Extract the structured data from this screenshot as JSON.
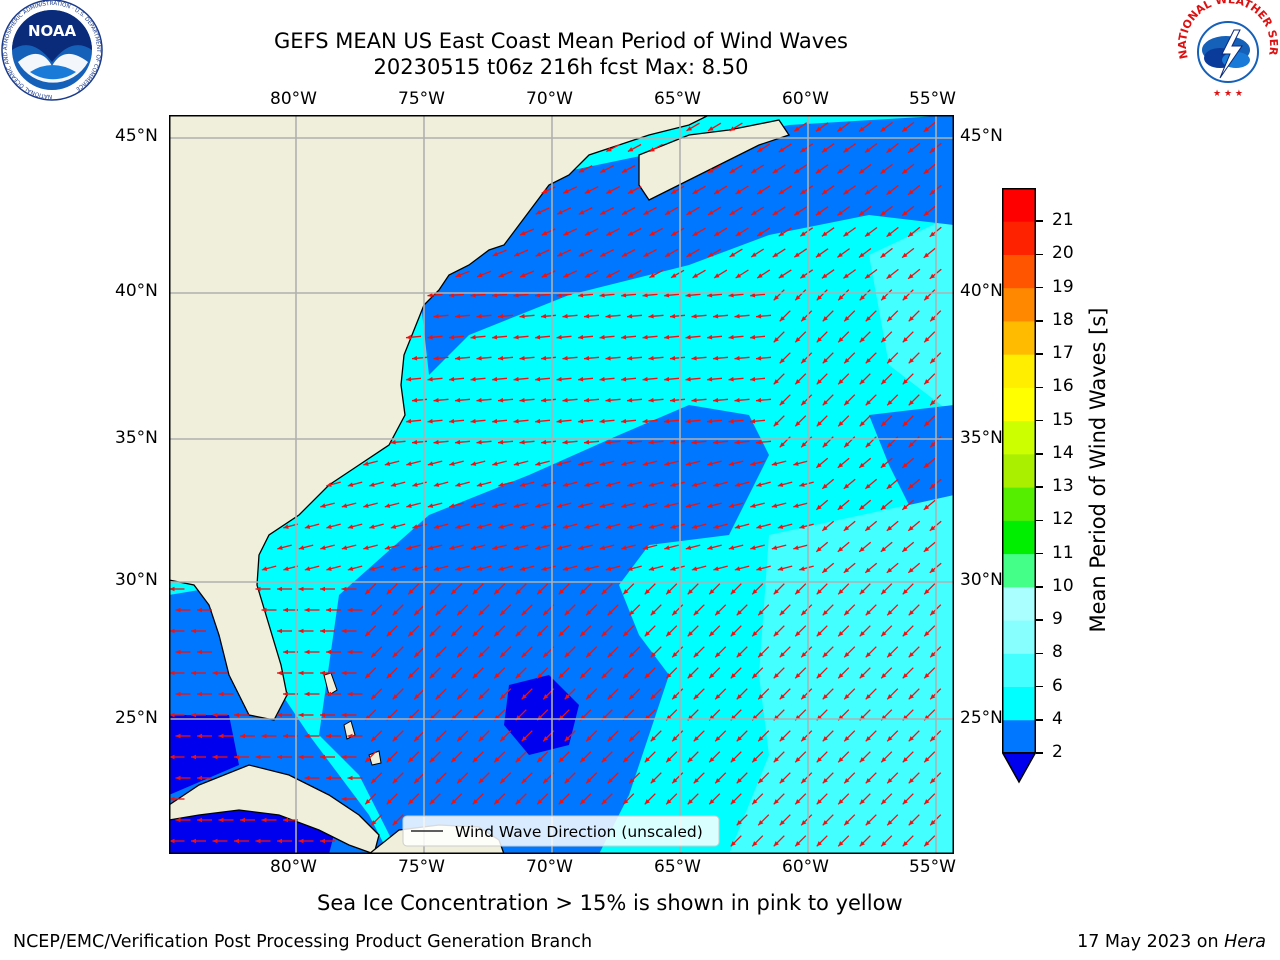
{
  "title": {
    "line1": "GEFS MEAN US East Coast Mean Period of Wind Waves",
    "line2": "20230515 t06z 216h fcst   Max: 8.50"
  },
  "logos": {
    "left": "NOAA",
    "left_ring": "NATIONAL OCEANIC AND ATMOSPHERIC ADMINISTRATION · U.S. DEPARTMENT OF COMMERCE",
    "right_ring": "NATIONAL WEATHER SERVICE"
  },
  "map": {
    "lon_labels": [
      "80°W",
      "75°W",
      "70°W",
      "65°W",
      "60°W",
      "55°W"
    ],
    "lat_labels": [
      "45°N",
      "40°N",
      "35°N",
      "30°N",
      "25°N"
    ],
    "legend_label": "Wind Wave Direction (unscaled)",
    "land_color": "#efefdc",
    "arrow_color": "#ee1111"
  },
  "colorbar": {
    "label": "Mean Period of Wind Waves [s]",
    "ticks": [
      "21",
      "20",
      "19",
      "18",
      "17",
      "16",
      "15",
      "14",
      "13",
      "12",
      "11",
      "10",
      "9",
      "8",
      "6",
      "4",
      "2"
    ],
    "levels": [
      2,
      4,
      6,
      8,
      9,
      10,
      11,
      12,
      13,
      14,
      15,
      16,
      17,
      18,
      19,
      20,
      21
    ],
    "colors": [
      "#0077ff",
      "#00ffff",
      "#44ffff",
      "#88ffff",
      "#aaffff",
      "#44ff88",
      "#00ee00",
      "#55ee00",
      "#aaee00",
      "#ccff00",
      "#ffff00",
      "#ffee00",
      "#ffbb00",
      "#ff8800",
      "#ff5500",
      "#ff2200",
      "#ff0000"
    ],
    "under_color": "#0000ee"
  },
  "note": "Sea Ice Concentration > 15% is shown in pink to yellow",
  "footer": {
    "left": "NCEP/EMC/Verification Post Processing Product Generation Branch",
    "right_date": "17 May 2023 on ",
    "right_host": "Hera"
  }
}
